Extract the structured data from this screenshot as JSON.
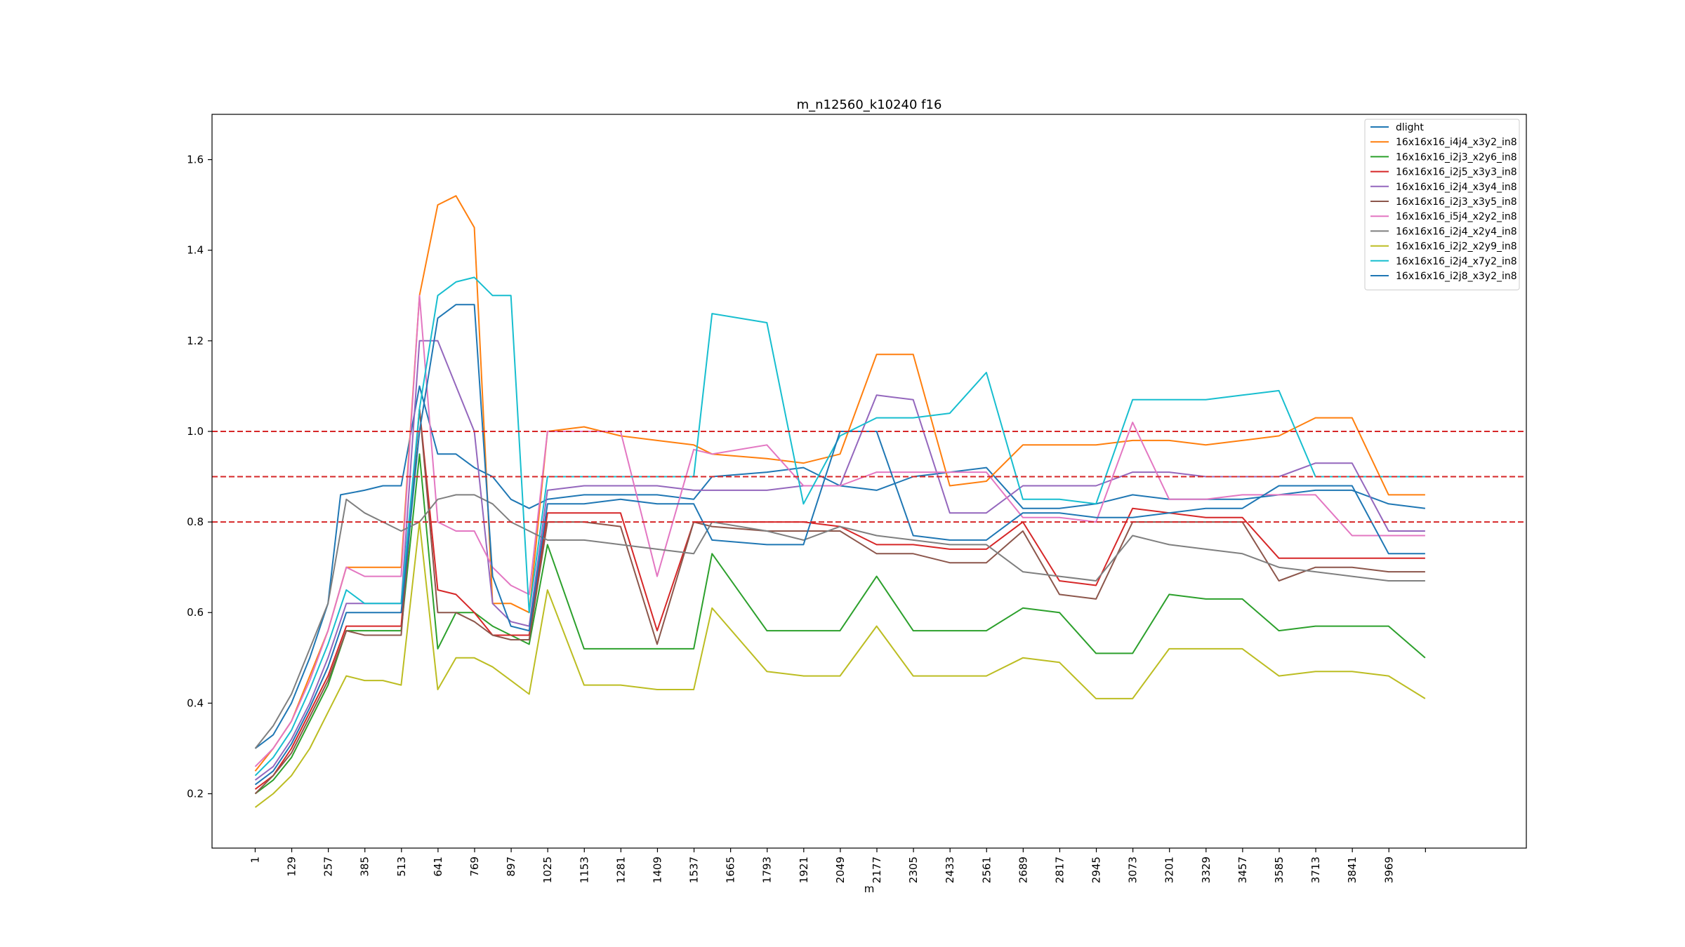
{
  "chart_data": {
    "type": "line",
    "title": "m_n12560_k10240 f16",
    "xlabel": "m",
    "ylabel": "",
    "xlim": [
      -150,
      4450
    ],
    "ylim": [
      0.08,
      1.7
    ],
    "x_ticks": [
      1,
      129,
      257,
      385,
      513,
      641,
      769,
      897,
      1025,
      1153,
      1281,
      1409,
      1537,
      1665,
      1793,
      1921,
      2049,
      2177,
      2305,
      2433,
      2561,
      2689,
      2817,
      2945,
      3073,
      3201,
      3329,
      3457,
      3585,
      3713,
      3841,
      3969,
      4097
    ],
    "x_tick_labels": [
      "1",
      "129",
      "257",
      "385",
      "513",
      "641",
      "769",
      "897",
      "1025",
      "1153",
      "1281",
      "1409",
      "1537",
      "1665",
      "1793",
      "1921",
      "2049",
      "2177",
      "2305",
      "2433",
      "2561",
      "2689",
      "2817",
      "2945",
      "3073",
      "3201",
      "3329",
      "3457",
      "3585",
      "3713",
      "3841",
      "3969",
      ""
    ],
    "y_ticks": [
      0.2,
      0.4,
      0.6,
      0.8,
      1.0,
      1.2,
      1.4,
      1.6
    ],
    "y_tick_labels": [
      "0.2",
      "0.4",
      "0.6",
      "0.8",
      "1.0",
      "1.2",
      "1.4",
      "1.6"
    ],
    "hlines": [
      {
        "y": 1.0,
        "color": "#d62728",
        "style": "dashed"
      },
      {
        "y": 0.9,
        "color": "#d62728",
        "style": "dashed"
      },
      {
        "y": 0.8,
        "color": "#d62728",
        "style": "dashed"
      }
    ],
    "legend_position": "top-right",
    "grid": false,
    "series": [
      {
        "name": "dlight",
        "color": "#1f77b4",
        "x": [
          1,
          64,
          128,
          192,
          256,
          300,
          384,
          448,
          512,
          576,
          640,
          704,
          768,
          832,
          896,
          960,
          1024,
          1152,
          1280,
          1408,
          1536,
          1600,
          1792,
          1920,
          2048,
          2176,
          2304,
          2432,
          2560,
          2688,
          2816,
          2944,
          3072,
          3200,
          3328,
          3456,
          3584,
          3712,
          3840,
          3968,
          4096
        ],
        "y": [
          0.3,
          0.33,
          0.4,
          0.5,
          0.62,
          0.86,
          0.87,
          0.88,
          0.88,
          1.1,
          0.95,
          0.95,
          0.92,
          0.9,
          0.85,
          0.83,
          0.85,
          0.86,
          0.86,
          0.86,
          0.85,
          0.9,
          0.91,
          0.92,
          0.88,
          0.87,
          0.9,
          0.91,
          0.92,
          0.83,
          0.83,
          0.84,
          0.86,
          0.85,
          0.85,
          0.85,
          0.86,
          0.87,
          0.87,
          0.84,
          0.83
        ]
      },
      {
        "name": "16x16x16_i4j4_x3y2_in8",
        "color": "#ff7f0e",
        "x": [
          1,
          64,
          128,
          192,
          256,
          320,
          384,
          448,
          512,
          576,
          640,
          704,
          768,
          832,
          896,
          960,
          1024,
          1152,
          1280,
          1408,
          1536,
          1600,
          1792,
          1920,
          2048,
          2176,
          2304,
          2432,
          2560,
          2688,
          2816,
          2944,
          3072,
          3200,
          3328,
          3456,
          3584,
          3712,
          3840,
          3968,
          4096
        ],
        "y": [
          0.25,
          0.3,
          0.36,
          0.46,
          0.56,
          0.7,
          0.7,
          0.7,
          0.7,
          1.3,
          1.5,
          1.52,
          1.45,
          0.62,
          0.62,
          0.6,
          1.0,
          1.01,
          0.99,
          0.98,
          0.97,
          0.95,
          0.94,
          0.93,
          0.95,
          1.17,
          1.17,
          0.88,
          0.89,
          0.97,
          0.97,
          0.97,
          0.98,
          0.98,
          0.97,
          0.98,
          0.99,
          1.03,
          1.03,
          0.86,
          0.86
        ]
      },
      {
        "name": "16x16x16_i2j3_x2y6_in8",
        "color": "#2ca02c",
        "x": [
          1,
          64,
          128,
          192,
          256,
          320,
          384,
          448,
          512,
          576,
          640,
          704,
          768,
          832,
          896,
          960,
          1024,
          1152,
          1280,
          1408,
          1536,
          1600,
          1792,
          1920,
          2048,
          2176,
          2304,
          2432,
          2560,
          2688,
          2816,
          2944,
          3072,
          3200,
          3328,
          3456,
          3584,
          3712,
          3840,
          3968,
          4096
        ],
        "y": [
          0.2,
          0.23,
          0.28,
          0.36,
          0.44,
          0.56,
          0.56,
          0.56,
          0.56,
          0.95,
          0.52,
          0.6,
          0.6,
          0.57,
          0.55,
          0.53,
          0.75,
          0.52,
          0.52,
          0.52,
          0.52,
          0.73,
          0.56,
          0.56,
          0.56,
          0.68,
          0.56,
          0.56,
          0.56,
          0.61,
          0.6,
          0.51,
          0.51,
          0.64,
          0.63,
          0.63,
          0.56,
          0.57,
          0.57,
          0.57,
          0.5
        ]
      },
      {
        "name": "16x16x16_i2j5_x3y3_in8",
        "color": "#d62728",
        "x": [
          1,
          64,
          128,
          192,
          256,
          320,
          384,
          448,
          512,
          576,
          640,
          704,
          768,
          832,
          896,
          960,
          1024,
          1152,
          1280,
          1408,
          1536,
          1600,
          1792,
          1920,
          2048,
          2176,
          2304,
          2432,
          2560,
          2688,
          2816,
          2944,
          3072,
          3200,
          3328,
          3456,
          3584,
          3712,
          3840,
          3968,
          4096
        ],
        "y": [
          0.21,
          0.24,
          0.3,
          0.38,
          0.46,
          0.57,
          0.57,
          0.57,
          0.57,
          1.05,
          0.65,
          0.64,
          0.6,
          0.55,
          0.55,
          0.55,
          0.82,
          0.82,
          0.82,
          0.56,
          0.8,
          0.8,
          0.8,
          0.8,
          0.79,
          0.75,
          0.75,
          0.74,
          0.74,
          0.8,
          0.67,
          0.66,
          0.83,
          0.82,
          0.81,
          0.81,
          0.72,
          0.72,
          0.72,
          0.72,
          0.72
        ]
      },
      {
        "name": "16x16x16_i2j4_x3y4_in8",
        "color": "#9467bd",
        "x": [
          1,
          64,
          128,
          192,
          256,
          320,
          384,
          448,
          512,
          576,
          640,
          704,
          768,
          832,
          896,
          960,
          1024,
          1152,
          1280,
          1408,
          1536,
          1600,
          1792,
          1920,
          2048,
          2176,
          2304,
          2432,
          2560,
          2688,
          2816,
          2944,
          3072,
          3200,
          3328,
          3456,
          3584,
          3712,
          3840,
          3968,
          4096
        ],
        "y": [
          0.23,
          0.26,
          0.32,
          0.4,
          0.5,
          0.62,
          0.62,
          0.62,
          0.62,
          1.2,
          1.2,
          1.1,
          1.0,
          0.62,
          0.58,
          0.57,
          0.87,
          0.88,
          0.88,
          0.88,
          0.87,
          0.87,
          0.87,
          0.88,
          0.88,
          1.08,
          1.07,
          0.82,
          0.82,
          0.88,
          0.88,
          0.88,
          0.91,
          0.91,
          0.9,
          0.9,
          0.9,
          0.93,
          0.93,
          0.78,
          0.78
        ]
      },
      {
        "name": "16x16x16_i2j3_x3y5_in8",
        "color": "#8c564b",
        "x": [
          1,
          64,
          128,
          192,
          256,
          320,
          384,
          448,
          512,
          576,
          640,
          704,
          768,
          832,
          896,
          960,
          1024,
          1152,
          1280,
          1408,
          1536,
          1600,
          1792,
          1920,
          2048,
          2176,
          2304,
          2432,
          2560,
          2688,
          2816,
          2944,
          3072,
          3200,
          3328,
          3456,
          3584,
          3712,
          3840,
          3968,
          4096
        ],
        "y": [
          0.2,
          0.24,
          0.29,
          0.37,
          0.45,
          0.56,
          0.55,
          0.55,
          0.55,
          1.05,
          0.6,
          0.6,
          0.58,
          0.55,
          0.54,
          0.54,
          0.8,
          0.8,
          0.79,
          0.53,
          0.8,
          0.79,
          0.78,
          0.78,
          0.78,
          0.73,
          0.73,
          0.71,
          0.71,
          0.78,
          0.64,
          0.63,
          0.8,
          0.8,
          0.8,
          0.8,
          0.67,
          0.7,
          0.7,
          0.69,
          0.69
        ]
      },
      {
        "name": "16x16x16_i5j4_x2y2_in8",
        "color": "#e377c2",
        "x": [
          1,
          64,
          128,
          192,
          256,
          320,
          384,
          448,
          512,
          576,
          640,
          704,
          768,
          832,
          896,
          960,
          1024,
          1152,
          1280,
          1408,
          1536,
          1600,
          1792,
          1920,
          2048,
          2176,
          2304,
          2432,
          2560,
          2688,
          2816,
          2944,
          3072,
          3200,
          3328,
          3456,
          3584,
          3712,
          3840,
          3968,
          4096
        ],
        "y": [
          0.26,
          0.3,
          0.36,
          0.45,
          0.56,
          0.7,
          0.68,
          0.68,
          0.68,
          1.3,
          0.8,
          0.78,
          0.78,
          0.7,
          0.66,
          0.64,
          1.0,
          1.0,
          1.0,
          0.68,
          0.96,
          0.95,
          0.97,
          0.88,
          0.88,
          0.91,
          0.91,
          0.91,
          0.91,
          0.81,
          0.81,
          0.8,
          1.02,
          0.85,
          0.85,
          0.86,
          0.86,
          0.86,
          0.77,
          0.77,
          0.77
        ]
      },
      {
        "name": "16x16x16_i2j4_x2y4_in8",
        "color": "#7f7f7f",
        "x": [
          1,
          64,
          128,
          192,
          256,
          320,
          384,
          448,
          512,
          576,
          640,
          704,
          768,
          832,
          896,
          960,
          1024,
          1152,
          1280,
          1408,
          1536,
          1600,
          1792,
          1920,
          2048,
          2176,
          2304,
          2432,
          2560,
          2688,
          2816,
          2944,
          3072,
          3200,
          3328,
          3456,
          3584,
          3712,
          3840,
          3968,
          4096
        ],
        "y": [
          0.3,
          0.35,
          0.42,
          0.52,
          0.62,
          0.85,
          0.82,
          0.8,
          0.78,
          0.8,
          0.85,
          0.86,
          0.86,
          0.84,
          0.8,
          0.78,
          0.76,
          0.76,
          0.75,
          0.74,
          0.73,
          0.8,
          0.78,
          0.76,
          0.79,
          0.77,
          0.76,
          0.75,
          0.75,
          0.69,
          0.68,
          0.67,
          0.77,
          0.75,
          0.74,
          0.73,
          0.7,
          0.69,
          0.68,
          0.67,
          0.67
        ]
      },
      {
        "name": "16x16x16_i2j2_x2y9_in8",
        "color": "#bcbd22",
        "x": [
          1,
          64,
          128,
          192,
          256,
          320,
          384,
          448,
          512,
          576,
          640,
          704,
          768,
          832,
          896,
          960,
          1024,
          1152,
          1280,
          1408,
          1536,
          1600,
          1792,
          1920,
          2048,
          2176,
          2304,
          2432,
          2560,
          2688,
          2816,
          2944,
          3072,
          3200,
          3328,
          3456,
          3584,
          3712,
          3840,
          3968,
          4096
        ],
        "y": [
          0.17,
          0.2,
          0.24,
          0.3,
          0.38,
          0.46,
          0.45,
          0.45,
          0.44,
          0.8,
          0.43,
          0.5,
          0.5,
          0.48,
          0.45,
          0.42,
          0.65,
          0.44,
          0.44,
          0.43,
          0.43,
          0.61,
          0.47,
          0.46,
          0.46,
          0.57,
          0.46,
          0.46,
          0.46,
          0.5,
          0.49,
          0.41,
          0.41,
          0.52,
          0.52,
          0.52,
          0.46,
          0.47,
          0.47,
          0.46,
          0.41
        ]
      },
      {
        "name": "16x16x16_i2j4_x7y2_in8",
        "color": "#17becf",
        "x": [
          1,
          64,
          128,
          192,
          256,
          320,
          384,
          448,
          512,
          576,
          640,
          704,
          768,
          832,
          896,
          960,
          1024,
          1152,
          1280,
          1408,
          1536,
          1600,
          1792,
          1920,
          2048,
          2176,
          2304,
          2432,
          2560,
          2688,
          2816,
          2944,
          3072,
          3200,
          3328,
          3456,
          3584,
          3712,
          3840,
          3968,
          4096
        ],
        "y": [
          0.24,
          0.28,
          0.34,
          0.43,
          0.53,
          0.65,
          0.62,
          0.62,
          0.62,
          1.05,
          1.3,
          1.33,
          1.34,
          1.3,
          1.3,
          0.6,
          0.9,
          0.9,
          0.9,
          0.9,
          0.9,
          1.26,
          1.24,
          0.84,
          0.99,
          1.03,
          1.03,
          1.04,
          1.13,
          0.85,
          0.85,
          0.84,
          1.07,
          1.07,
          1.07,
          1.08,
          1.09,
          0.9,
          0.9,
          0.9,
          0.9
        ]
      },
      {
        "name": "16x16x16_i2j8_x3y2_in8",
        "color": "#1f77b4",
        "x": [
          1,
          64,
          128,
          192,
          256,
          320,
          384,
          448,
          512,
          576,
          640,
          704,
          768,
          832,
          896,
          960,
          1024,
          1152,
          1280,
          1408,
          1536,
          1600,
          1792,
          1920,
          2048,
          2176,
          2304,
          2432,
          2560,
          2688,
          2816,
          2944,
          3072,
          3200,
          3328,
          3456,
          3584,
          3712,
          3840,
          3968,
          4096
        ],
        "y": [
          0.22,
          0.25,
          0.31,
          0.39,
          0.48,
          0.6,
          0.6,
          0.6,
          0.6,
          1.0,
          1.25,
          1.28,
          1.28,
          0.68,
          0.57,
          0.56,
          0.84,
          0.84,
          0.85,
          0.84,
          0.84,
          0.76,
          0.75,
          0.75,
          1.0,
          1.0,
          0.77,
          0.76,
          0.76,
          0.82,
          0.82,
          0.81,
          0.81,
          0.82,
          0.83,
          0.83,
          0.88,
          0.88,
          0.88,
          0.73,
          0.73
        ]
      }
    ]
  }
}
